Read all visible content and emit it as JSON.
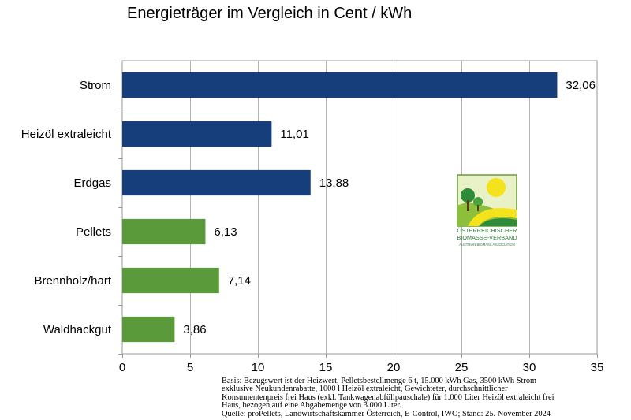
{
  "chart_data": {
    "type": "bar",
    "orientation": "horizontal",
    "title": "Energieträger im Vergleich in Cent / kWh",
    "xlabel": "",
    "ylabel": "",
    "xlim": [
      0,
      35
    ],
    "xticks": [
      0,
      5,
      10,
      15,
      20,
      25,
      30,
      35
    ],
    "grid": true,
    "categories": [
      "Strom",
      "Heizöl extraleicht",
      "Erdgas",
      "Pellets",
      "Brennholz/hart",
      "Waldhackgut"
    ],
    "values": [
      32.06,
      11.01,
      13.88,
      6.13,
      7.14,
      3.86
    ],
    "value_labels": [
      "32,06",
      "11,01",
      "13,88",
      "6,13",
      "7,14",
      "3,86"
    ],
    "bar_colors": [
      "#163e7a",
      "#163e7a",
      "#163e7a",
      "#5b9a3b",
      "#5b9a3b",
      "#5b9a3b"
    ]
  },
  "footnote": {
    "lines": [
      "Basis: Bezugswert ist der Heizwert, Pelletsbestellmenge 6 t, 15.000 kWh Gas, 3500 kWh Strom",
      "exklusive Neukundenrabatte, 1000 l Heizöl extraleicht, Gewichteter, durchschnittlicher",
      "Konsumentenpreis frei Haus (exkl. Tankwagenabfüllpauschale) für 1.000 Liter Heizöl extraleicht frei",
      "Haus, bezogen auf eine Abgabemenge von 3.000 Liter.",
      "Quelle: proPellets, Landwirtschaftskammer Österreich, E-Control, IWO; Stand: 25. November 2024"
    ]
  },
  "logo": {
    "line1": "ÖSTERREICHISCHER",
    "line2": "BIOMASSE-VERBAND",
    "line3": "AUSTRIAN BIOMASS ASSOCIATION"
  }
}
